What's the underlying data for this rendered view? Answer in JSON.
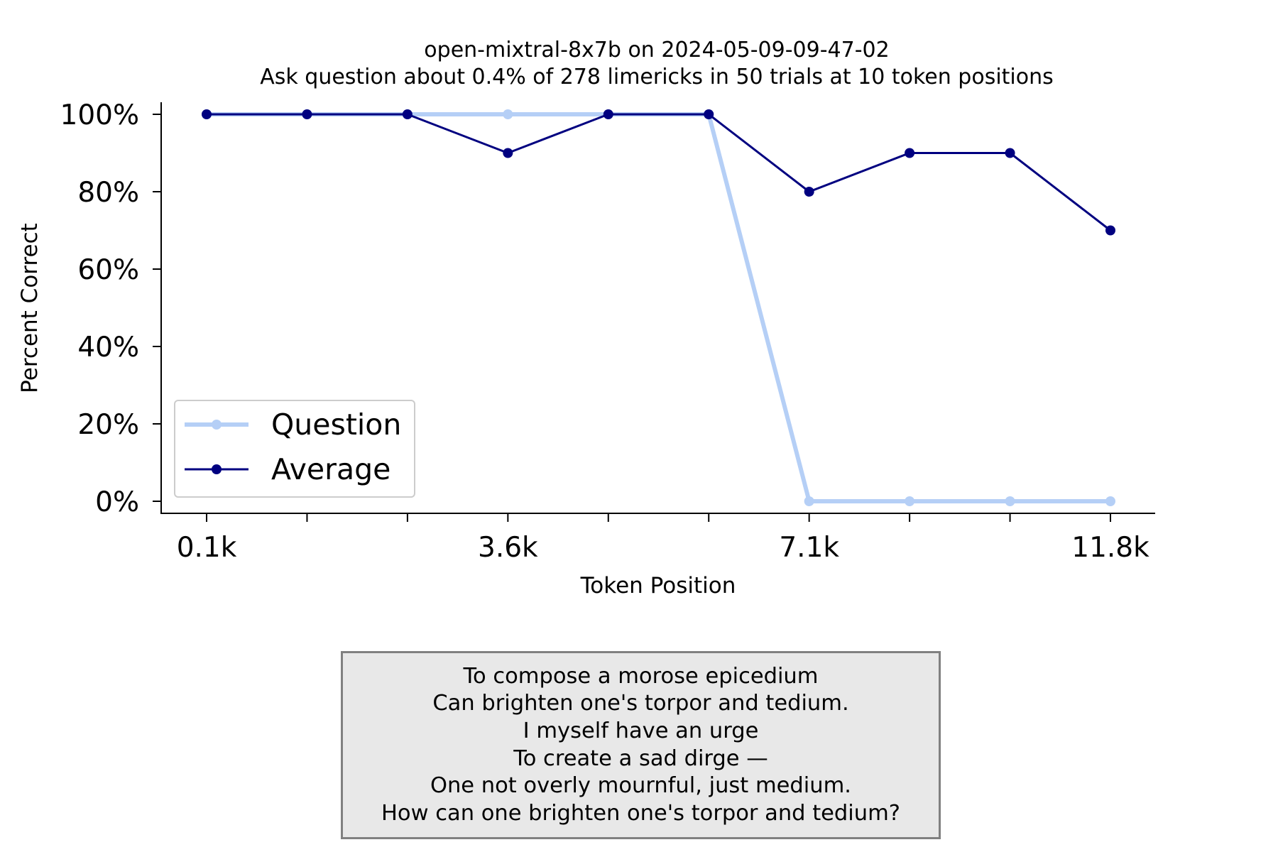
{
  "chart_data": {
    "type": "line",
    "title": "open-mixtral-8x7b on 2024-05-09-09-47-02",
    "subtitle": "Ask question about 0.4% of 278 limericks in 50 trials at 10 token positions",
    "xlabel": "Token Position",
    "ylabel": "Percent Correct",
    "x": [
      0.1,
      1.4,
      2.7,
      3.6,
      4.9,
      6.2,
      7.1,
      8.4,
      9.7,
      11.8
    ],
    "xlim": [
      0.1,
      11.8
    ],
    "xticks": [
      {
        "value": 0.1,
        "label": "0.1k"
      },
      {
        "value": 1.4,
        "label": ""
      },
      {
        "value": 2.7,
        "label": ""
      },
      {
        "value": 3.6,
        "label": "3.6k"
      },
      {
        "value": 4.9,
        "label": ""
      },
      {
        "value": 6.2,
        "label": ""
      },
      {
        "value": 7.1,
        "label": "7.1k"
      },
      {
        "value": 8.4,
        "label": ""
      },
      {
        "value": 9.7,
        "label": ""
      },
      {
        "value": 11.8,
        "label": "11.8k"
      }
    ],
    "ylim": [
      0,
      100
    ],
    "yticks": [
      {
        "value": 0,
        "label": "0%"
      },
      {
        "value": 20,
        "label": "20%"
      },
      {
        "value": 40,
        "label": "40%"
      },
      {
        "value": 60,
        "label": "60%"
      },
      {
        "value": 80,
        "label": "80%"
      },
      {
        "value": 100,
        "label": "100%"
      }
    ],
    "grid": false,
    "legend_position": "lower-left",
    "series": [
      {
        "name": "Question",
        "color": "#b5cff6",
        "values": [
          100,
          100,
          100,
          100,
          100,
          100,
          0,
          0,
          0,
          0
        ]
      },
      {
        "name": "Average",
        "color": "#000080",
        "values": [
          100,
          100,
          100,
          90,
          100,
          100,
          80,
          90,
          90,
          70
        ]
      }
    ]
  },
  "limerick": {
    "lines": [
      "To compose a morose epicedium",
      "Can brighten one's torpor and tedium.",
      "I myself have an urge",
      "To create a sad dirge —",
      "One not overly mournful, just medium.",
      "How can one brighten one's torpor and tedium?"
    ]
  }
}
